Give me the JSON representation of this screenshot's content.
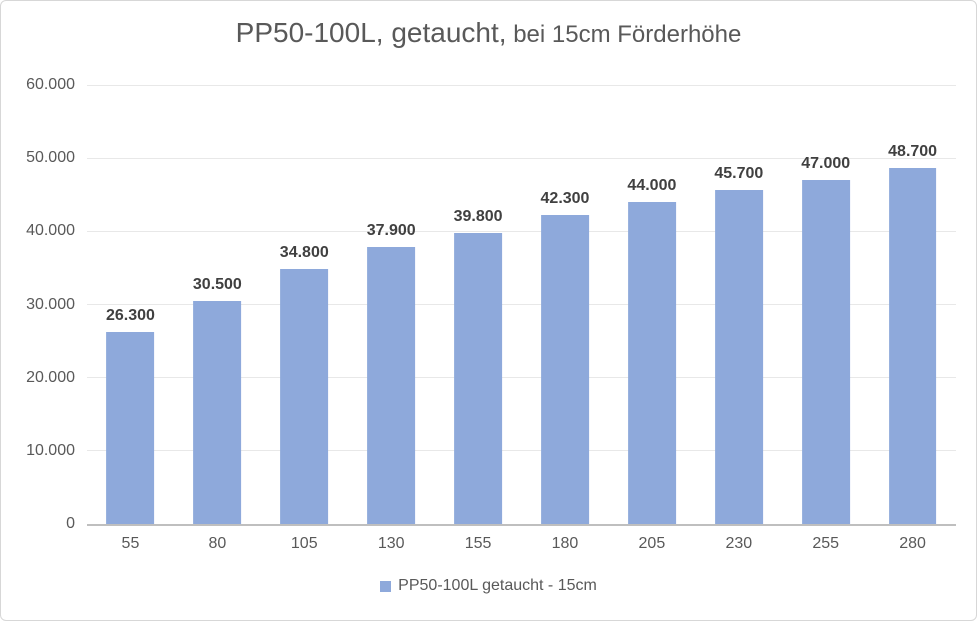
{
  "title": {
    "main": "PP50-100L, getaucht,",
    "sub": " bei 15cm Förderhöhe"
  },
  "legend": {
    "label": "PP50-100L getaucht - 15cm"
  },
  "colors": {
    "bar": "#8EA9DB",
    "gridline": "#E8E8E8",
    "axis_line": "#BFBFBF",
    "axis_text": "#595959",
    "data_label": "#404040",
    "title_text": "#595959",
    "frame_border": "#D7D7D7"
  },
  "chart_data": {
    "type": "bar",
    "title": "PP50-100L, getaucht, bei 15cm Förderhöhe",
    "categories": [
      "55",
      "80",
      "105",
      "130",
      "155",
      "180",
      "205",
      "230",
      "255",
      "280"
    ],
    "values": [
      26300,
      30500,
      34800,
      37900,
      39800,
      42300,
      44000,
      45700,
      47000,
      48700
    ],
    "value_labels": [
      "26.300",
      "30.500",
      "34.800",
      "37.900",
      "39.800",
      "42.300",
      "44.000",
      "45.700",
      "47.000",
      "48.700"
    ],
    "series": [
      {
        "name": "PP50-100L getaucht - 15cm",
        "values": [
          26300,
          30500,
          34800,
          37900,
          39800,
          42300,
          44000,
          45700,
          47000,
          48700
        ]
      }
    ],
    "xlabel": "",
    "ylabel": "",
    "ylim": [
      0,
      60000
    ],
    "ytick_values": [
      0,
      10000,
      20000,
      30000,
      40000,
      50000,
      60000
    ],
    "ytick_labels": [
      "0",
      "10.000",
      "20.000",
      "30.000",
      "40.000",
      "50.000",
      "60.000"
    ],
    "grid": true,
    "legend_position": "bottom"
  }
}
